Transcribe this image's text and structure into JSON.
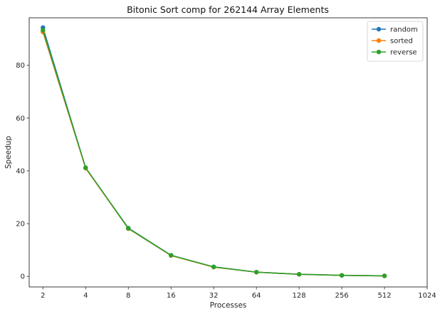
{
  "chart_data": {
    "type": "line",
    "title": "Bitonic Sort comp for 262144 Array Elements",
    "xlabel": "Processes",
    "ylabel": "Speedup",
    "x_scale": "log2",
    "xlim": [
      1.6,
      1024
    ],
    "ylim": [
      -4,
      98
    ],
    "x_ticks": [
      2,
      4,
      8,
      16,
      32,
      64,
      128,
      256,
      512,
      1024
    ],
    "x_tick_labels": [
      "2",
      "4",
      "8",
      "16",
      "32",
      "64",
      "128",
      "256",
      "512",
      "1024"
    ],
    "y_ticks": [
      0,
      20,
      40,
      60,
      80
    ],
    "y_tick_labels": [
      "0",
      "20",
      "40",
      "60",
      "80"
    ],
    "grid": false,
    "legend_position": "top-right",
    "x": [
      2,
      4,
      8,
      16,
      32,
      64,
      128,
      256,
      512
    ],
    "series": [
      {
        "name": "random",
        "color": "#1f77b4",
        "values": [
          94.3,
          41.1,
          18.3,
          8.0,
          3.6,
          1.6,
          0.8,
          0.4,
          0.2
        ]
      },
      {
        "name": "sorted",
        "color": "#ff7f0e",
        "values": [
          92.6,
          41.0,
          18.1,
          7.9,
          3.5,
          1.6,
          0.8,
          0.4,
          0.2
        ]
      },
      {
        "name": "reverse",
        "color": "#2ca02c",
        "values": [
          93.3,
          41.2,
          18.2,
          8.0,
          3.6,
          1.6,
          0.8,
          0.4,
          0.2
        ]
      }
    ]
  }
}
